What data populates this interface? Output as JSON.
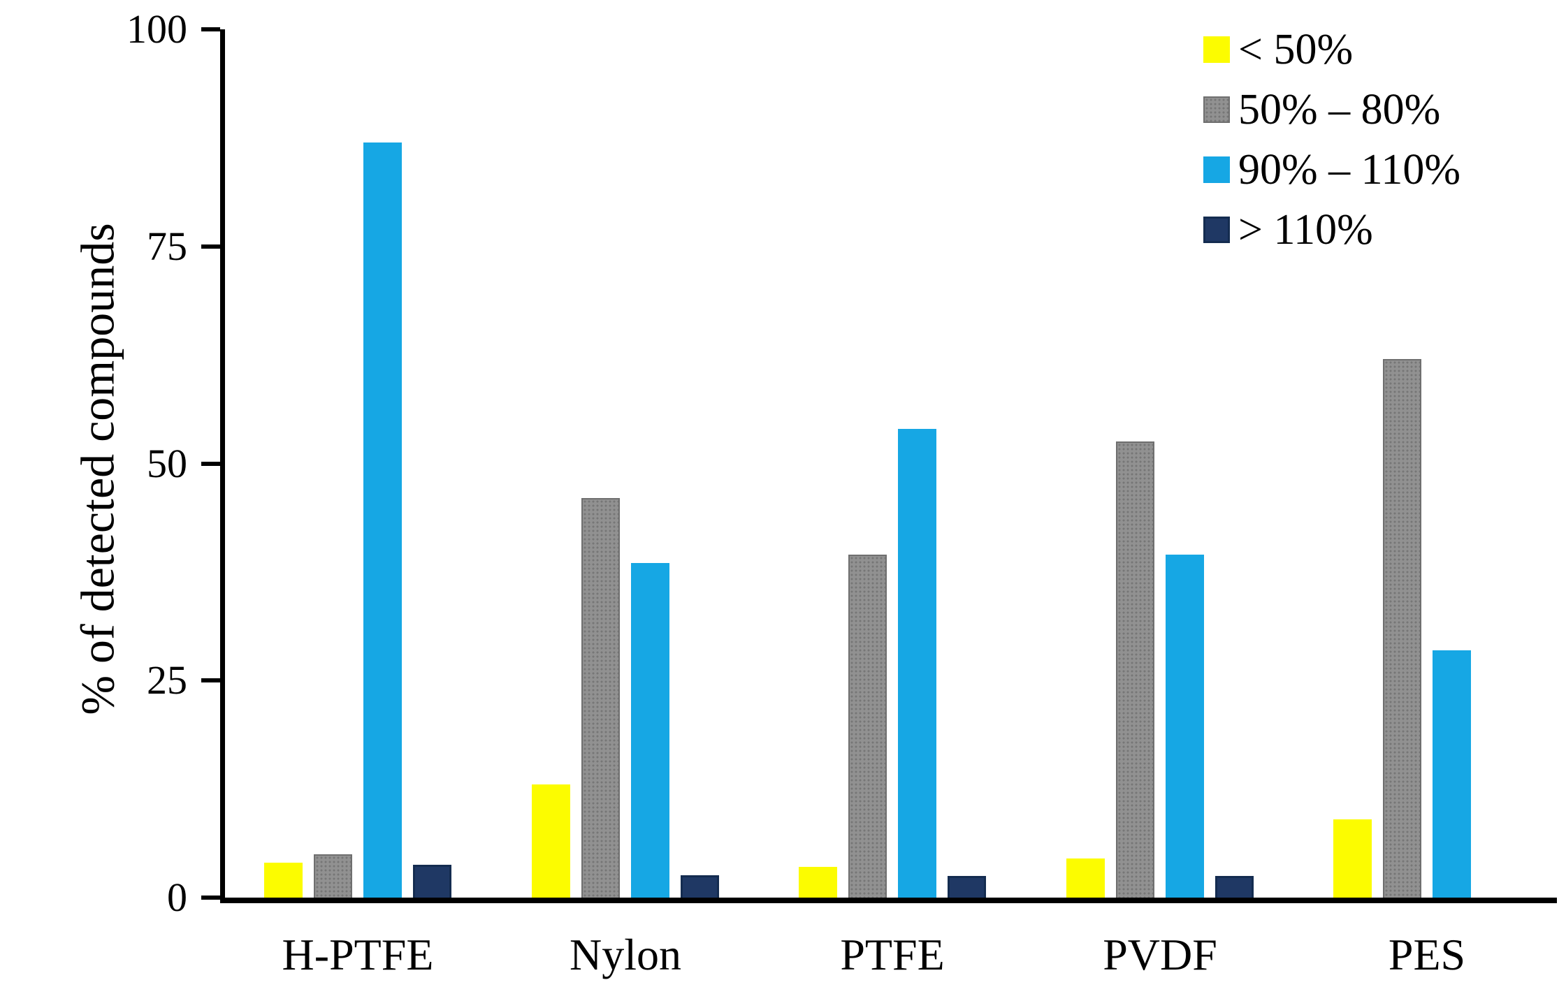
{
  "chart_data": {
    "type": "bar",
    "title": "",
    "xlabel": "",
    "ylabel": "% of detected compounds",
    "ylim": [
      0,
      100
    ],
    "yticks": [
      0,
      25,
      50,
      75,
      100
    ],
    "grid": false,
    "legend_position": "top-right",
    "background_color": "#ffffff",
    "axis_color": "#000000",
    "categories": [
      "H-PTFE",
      "Nylon",
      "PTFE",
      "PVDF",
      "PES"
    ],
    "series": [
      {
        "name": "< 50%",
        "color": "#FCFC00",
        "pattern": "solid",
        "values": [
          4,
          13,
          3.5,
          4.5,
          9
        ]
      },
      {
        "name": "50% – 80%",
        "color": "#919191",
        "pattern": "dots",
        "values": [
          5,
          46,
          39.5,
          52.5,
          62
        ]
      },
      {
        "name": "90% – 110%",
        "color": "#16A7E4",
        "pattern": "solid",
        "values": [
          87,
          38.5,
          54,
          39.5,
          28.5
        ]
      },
      {
        "name": "> 110%",
        "color": "#1F3864",
        "pattern": "solid",
        "values": [
          3.8,
          2.6,
          2.5,
          2.5,
          0
        ]
      }
    ]
  }
}
